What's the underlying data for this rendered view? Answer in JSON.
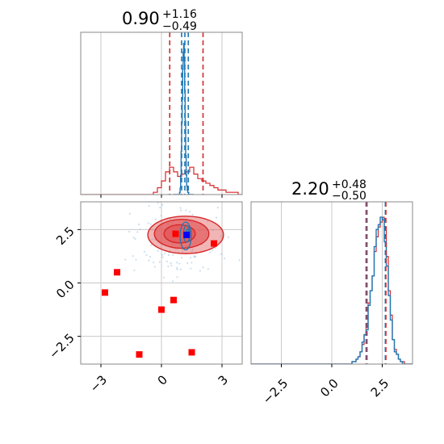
{
  "chart_data": {
    "type": "corner",
    "parameters": [
      {
        "title": {
          "value": "0.90",
          "plus": "+1.16",
          "minus": "−0.49"
        },
        "median": 0.9,
        "quantiles_red": [
          0.41,
          0.9,
          2.06
        ],
        "quantiles_blue": [
          1.0,
          1.16,
          1.33
        ],
        "truth": 1.12,
        "histogram_red": {
          "range": [
            -4,
            4
          ],
          "bins": 40,
          "counts": [
            0,
            0,
            0,
            0,
            0,
            0,
            0,
            0,
            0,
            0,
            0,
            0,
            0,
            0,
            0,
            0,
            0,
            0,
            1,
            3,
            6,
            10,
            12,
            10,
            8,
            9,
            10,
            12,
            9,
            7,
            6,
            5,
            4,
            3,
            2,
            2,
            1,
            1,
            1,
            0
          ]
        },
        "histogram_blue": {
          "range": [
            0.6,
            1.6
          ],
          "bins": 40,
          "counts": [
            0,
            0,
            0,
            0,
            0,
            0,
            0,
            0,
            0,
            0,
            0,
            0,
            1,
            3,
            9,
            20,
            33,
            44,
            58,
            66,
            70,
            62,
            48,
            34,
            18,
            9,
            4,
            2,
            1,
            1,
            0,
            0,
            0,
            0,
            0,
            0,
            0,
            0,
            0,
            0
          ]
        },
        "xlim": [
          -4,
          4
        ],
        "ticks": [
          -3,
          0,
          3
        ],
        "tick_labels": [
          "−3",
          "0",
          "3"
        ]
      },
      {
        "title": {
          "value": "2.20",
          "plus": "+0.48",
          "minus": "−0.50"
        },
        "median": 2.2,
        "quantiles_red": [
          1.7,
          2.2,
          2.68
        ],
        "quantiles_blue": [
          1.75,
          2.2,
          2.65
        ],
        "xlim": [
          -4,
          4
        ],
        "ticks": [
          -2.5,
          0.0,
          2.5
        ],
        "tick_labels": [
          "−2.5",
          "0.0",
          "2.5"
        ],
        "histogram_red": {
          "range": [
            -4,
            4
          ],
          "bins": 80,
          "counts": [
            0,
            0,
            0,
            0,
            0,
            0,
            0,
            0,
            0,
            0,
            0,
            0,
            0,
            0,
            0,
            0,
            0,
            0,
            0,
            0,
            0,
            0,
            0,
            0,
            0,
            0,
            0,
            0,
            0,
            0,
            0,
            0,
            0,
            0,
            0,
            0,
            0,
            0,
            0,
            0,
            0,
            0,
            0,
            0,
            0,
            0,
            0,
            0,
            0,
            0,
            1,
            1,
            2,
            3,
            5,
            8,
            12,
            15,
            25,
            30,
            36,
            46,
            52,
            56,
            58,
            60,
            56,
            44,
            30,
            20,
            10,
            6,
            4,
            2,
            1,
            1,
            0,
            0,
            0,
            0
          ]
        },
        "histogram_blue": {
          "range": [
            -4,
            4
          ],
          "bins": 80,
          "counts": [
            0,
            0,
            0,
            0,
            0,
            0,
            0,
            0,
            0,
            0,
            0,
            0,
            0,
            0,
            0,
            0,
            0,
            0,
            0,
            0,
            0,
            0,
            0,
            0,
            0,
            0,
            0,
            0,
            0,
            0,
            0,
            0,
            0,
            0,
            0,
            0,
            0,
            0,
            0,
            0,
            0,
            0,
            0,
            0,
            0,
            0,
            0,
            0,
            0,
            0,
            1,
            1,
            2,
            3,
            5,
            9,
            12,
            14,
            24,
            30,
            36,
            48,
            55,
            57,
            60,
            59,
            50,
            40,
            28,
            18,
            10,
            5,
            4,
            2,
            1,
            0,
            0,
            0,
            0,
            0
          ]
        }
      }
    ],
    "joint": {
      "xlim": [
        -4,
        4
      ],
      "ylim": [
        -3.8,
        3.8
      ],
      "x_ticks": [
        -3,
        0,
        3
      ],
      "x_tick_labels": [
        "−3",
        "0",
        "3"
      ],
      "y_ticks": [
        -2.5,
        0.0,
        2.5
      ],
      "y_tick_labels": [
        "−2.5",
        "0.0",
        "2.5"
      ],
      "red_contours": [
        {
          "cx": 1.2,
          "cy": 2.25,
          "rx": 3.75,
          "ry": 1.75
        },
        {
          "cx": 1.0,
          "cy": 2.3,
          "rx": 2.7,
          "ry": 1.35
        },
        {
          "cx": 0.9,
          "cy": 2.3,
          "rx": 1.55,
          "ry": 0.85
        }
      ],
      "blue_contours": [
        {
          "cx": 1.2,
          "cy": 2.2,
          "rx": 0.55,
          "ry": 1.3
        },
        {
          "cx": 1.25,
          "cy": 2.3,
          "rx": 0.3,
          "ry": 0.8
        },
        {
          "cx": 1.3,
          "cy": 2.35,
          "rx": 0.15,
          "ry": 0.35
        }
      ],
      "red_markers": [
        {
          "x": -2.2,
          "y": 0.5
        },
        {
          "x": -2.8,
          "y": -0.45
        },
        {
          "x": 0.6,
          "y": -0.8
        },
        {
          "x": 0.0,
          "y": -1.25
        },
        {
          "x": -1.1,
          "y": -3.35
        },
        {
          "x": 1.5,
          "y": -3.25
        },
        {
          "x": 2.6,
          "y": 1.85
        },
        {
          "x": 0.7,
          "y": 2.3
        }
      ],
      "blue_markers": [
        {
          "x": 1.25,
          "y": 2.25
        }
      ]
    },
    "colors": {
      "red": "#d62728",
      "red_fill": "#e35a5b",
      "blue": "#1f77b4",
      "grid": "#c8c8c8",
      "axes": "#888888"
    },
    "grid": true
  }
}
